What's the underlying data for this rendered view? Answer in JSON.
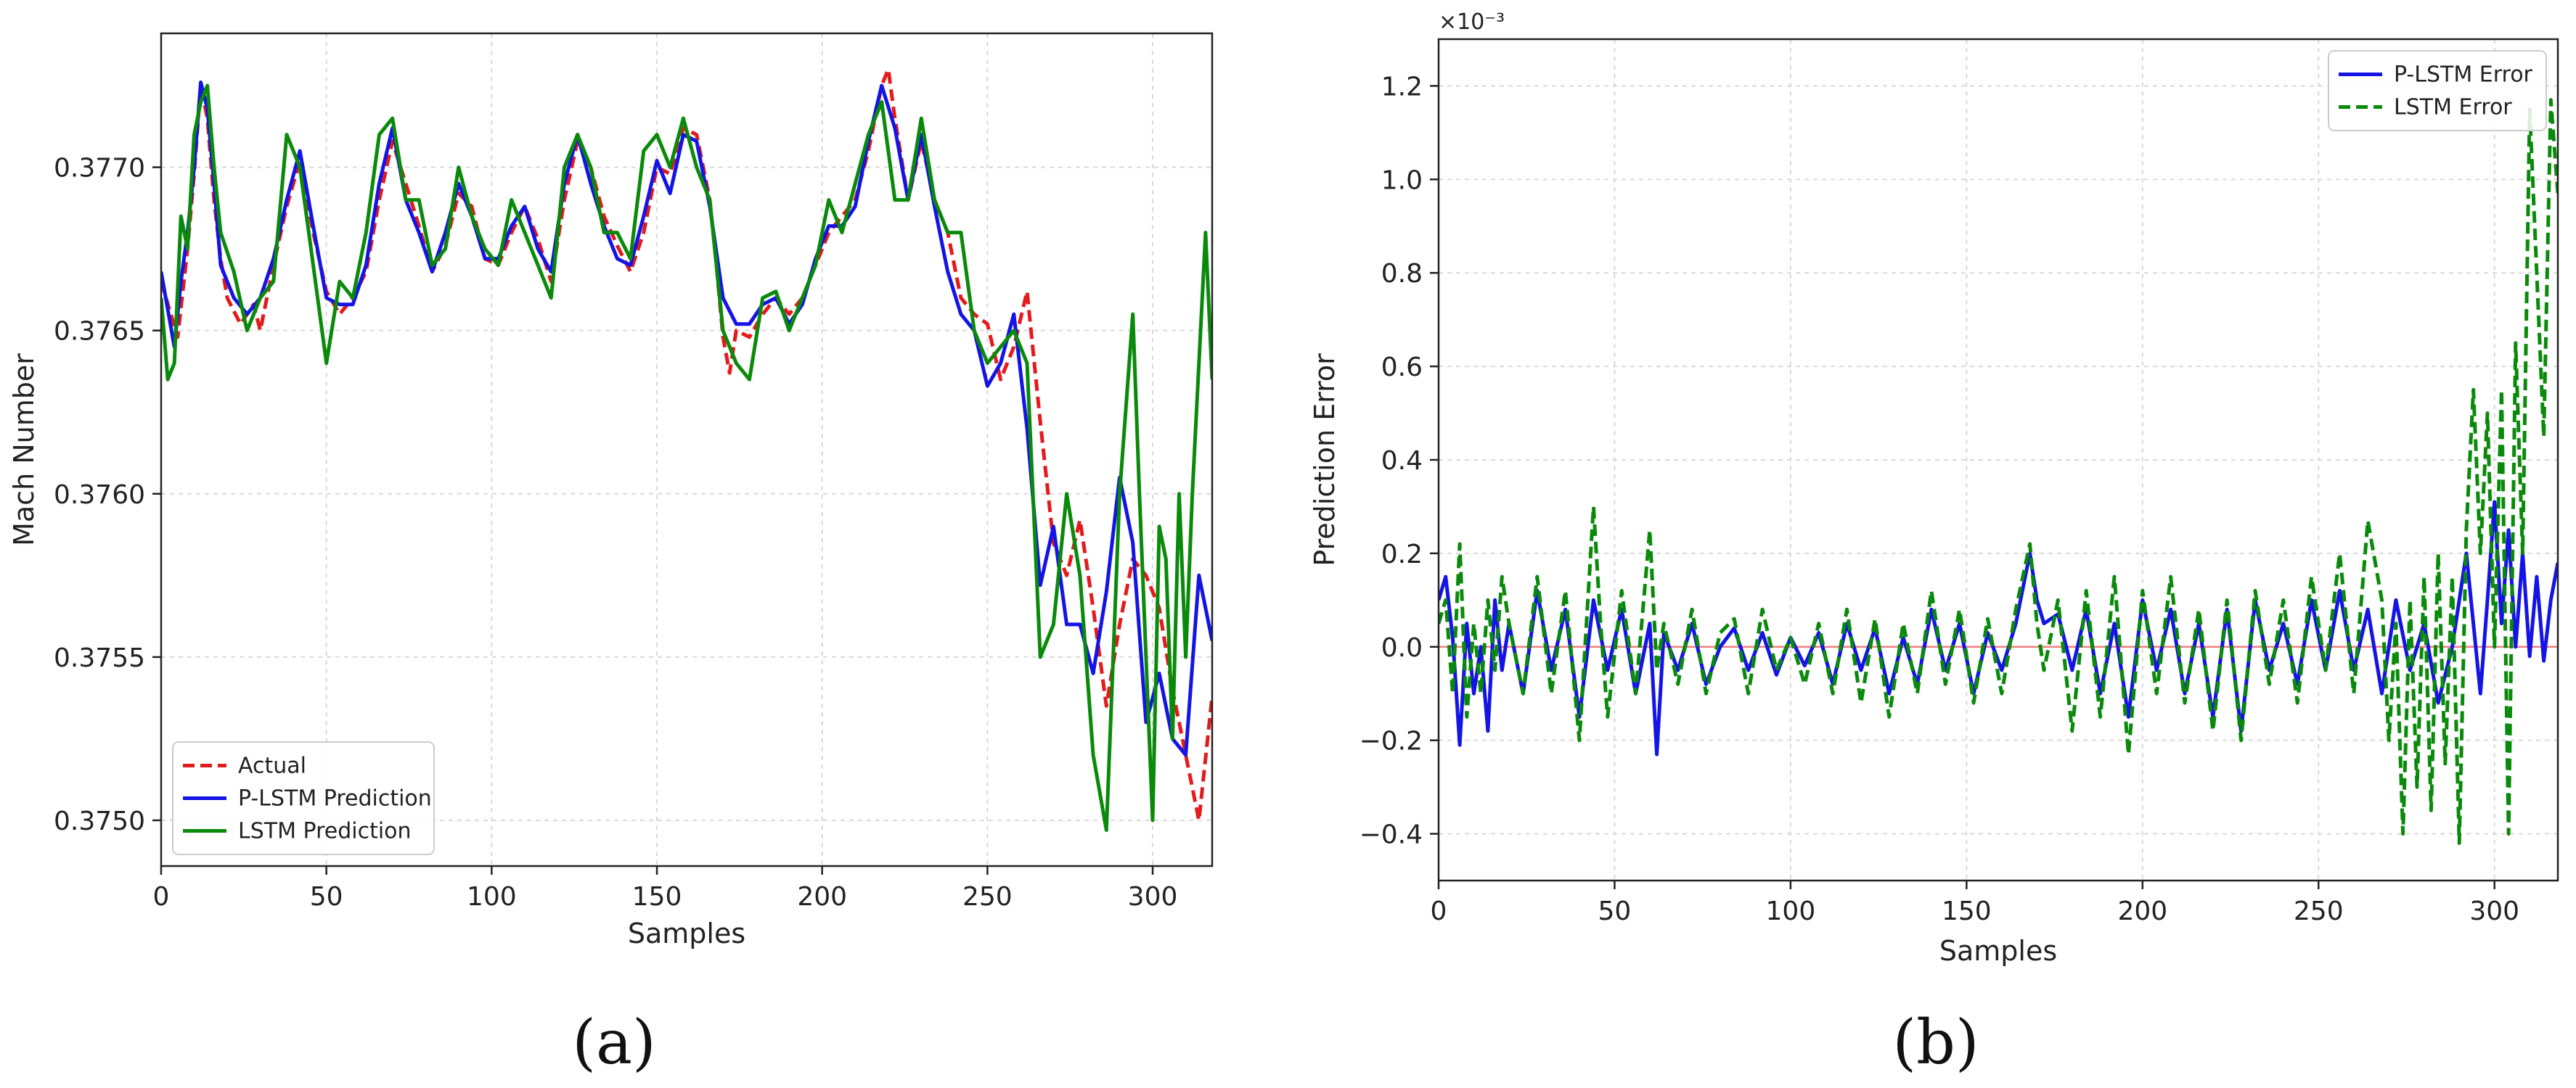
{
  "chart_data": [
    {
      "type": "line",
      "panel_label": "(a)",
      "title": "",
      "xlabel": "Samples",
      "ylabel": "Mach Number",
      "xlim": [
        0,
        318
      ],
      "ylim": [
        0.37486,
        0.37741
      ],
      "xticks": [
        0,
        50,
        100,
        150,
        200,
        250,
        300
      ],
      "xtick_labels": [
        "0",
        "50",
        "100",
        "150",
        "200",
        "250",
        "300"
      ],
      "yticks": [
        0.375,
        0.3755,
        0.376,
        0.3765,
        0.377
      ],
      "ytick_labels": [
        "0.3750",
        "0.3755",
        "0.3760",
        "0.3765",
        "0.3770"
      ],
      "grid": true,
      "legend_position": "lower-left",
      "series": [
        {
          "name": "Actual",
          "color": "#e41a1c",
          "style": "dashed",
          "x": [
            0,
            5,
            8,
            10,
            12,
            14,
            16,
            18,
            20,
            24,
            28,
            30,
            34,
            38,
            42,
            46,
            50,
            54,
            58,
            62,
            66,
            70,
            74,
            78,
            82,
            86,
            90,
            94,
            98,
            102,
            106,
            110,
            114,
            118,
            122,
            126,
            130,
            134,
            138,
            142,
            146,
            150,
            154,
            158,
            162,
            166,
            168,
            170,
            172,
            174,
            178,
            182,
            186,
            190,
            194,
            198,
            202,
            206,
            210,
            214,
            218,
            220,
            222,
            226,
            230,
            234,
            238,
            242,
            246,
            250,
            254,
            258,
            262,
            266,
            270,
            274,
            278,
            282,
            286,
            290,
            294,
            298,
            302,
            306,
            310,
            314,
            318
          ],
          "y": [
            0.37665,
            0.37648,
            0.37675,
            0.37698,
            0.37725,
            0.37715,
            0.3769,
            0.37672,
            0.3766,
            0.37652,
            0.37658,
            0.3765,
            0.3767,
            0.37688,
            0.37702,
            0.3768,
            0.37662,
            0.37655,
            0.3766,
            0.37668,
            0.3769,
            0.37708,
            0.37695,
            0.37682,
            0.37668,
            0.37676,
            0.37692,
            0.37688,
            0.37672,
            0.3767,
            0.3768,
            0.37688,
            0.37678,
            0.37665,
            0.3769,
            0.37708,
            0.377,
            0.37685,
            0.37676,
            0.37668,
            0.3768,
            0.377,
            0.37698,
            0.37712,
            0.3771,
            0.3769,
            0.3767,
            0.37648,
            0.37637,
            0.3765,
            0.37648,
            0.37655,
            0.3766,
            0.37655,
            0.3766,
            0.3767,
            0.3768,
            0.37685,
            0.3769,
            0.37705,
            0.37725,
            0.3773,
            0.37715,
            0.3769,
            0.37708,
            0.3769,
            0.3768,
            0.3766,
            0.37655,
            0.37652,
            0.37635,
            0.37645,
            0.37662,
            0.37622,
            0.37585,
            0.37575,
            0.37592,
            0.37565,
            0.37535,
            0.3756,
            0.3758,
            0.37575,
            0.37565,
            0.3754,
            0.3752,
            0.375,
            0.37538
          ]
        },
        {
          "name": "P-LSTM Prediction",
          "color": "#1414e6",
          "style": "solid",
          "x": [
            0,
            4,
            6,
            8,
            10,
            12,
            14,
            16,
            18,
            22,
            26,
            30,
            34,
            38,
            42,
            46,
            50,
            54,
            58,
            62,
            66,
            70,
            74,
            78,
            82,
            86,
            90,
            94,
            98,
            102,
            106,
            110,
            114,
            118,
            122,
            126,
            130,
            134,
            138,
            142,
            146,
            150,
            154,
            158,
            162,
            166,
            170,
            174,
            178,
            182,
            186,
            190,
            194,
            198,
            202,
            206,
            210,
            214,
            218,
            222,
            226,
            230,
            234,
            238,
            242,
            246,
            250,
            254,
            258,
            262,
            266,
            270,
            274,
            278,
            282,
            286,
            290,
            294,
            298,
            302,
            306,
            310,
            314,
            318
          ],
          "y": [
            0.37668,
            0.37645,
            0.37665,
            0.3768,
            0.377,
            0.37726,
            0.37718,
            0.37695,
            0.3767,
            0.3766,
            0.37655,
            0.3766,
            0.37672,
            0.3769,
            0.37705,
            0.37682,
            0.3766,
            0.37658,
            0.37658,
            0.3767,
            0.37695,
            0.37712,
            0.3769,
            0.3768,
            0.37668,
            0.3768,
            0.37695,
            0.37685,
            0.37672,
            0.37672,
            0.37682,
            0.37688,
            0.37675,
            0.37668,
            0.37695,
            0.3771,
            0.37695,
            0.37682,
            0.37672,
            0.3767,
            0.37685,
            0.37702,
            0.37692,
            0.3771,
            0.37708,
            0.37688,
            0.3766,
            0.37652,
            0.37652,
            0.37658,
            0.3766,
            0.37652,
            0.37658,
            0.37672,
            0.37682,
            0.37682,
            0.37688,
            0.37708,
            0.37725,
            0.37712,
            0.3769,
            0.3771,
            0.37688,
            0.37668,
            0.37655,
            0.3765,
            0.37633,
            0.3764,
            0.37655,
            0.3762,
            0.37572,
            0.3759,
            0.3756,
            0.3756,
            0.37545,
            0.3757,
            0.37605,
            0.37585,
            0.3753,
            0.37545,
            0.37525,
            0.3752,
            0.37575,
            0.37555
          ]
        },
        {
          "name": "LSTM Prediction",
          "color": "#0a8a0a",
          "style": "solid",
          "x": [
            0,
            2,
            4,
            6,
            8,
            10,
            12,
            14,
            16,
            18,
            22,
            26,
            30,
            34,
            38,
            42,
            46,
            50,
            54,
            58,
            62,
            66,
            70,
            74,
            78,
            82,
            86,
            90,
            94,
            98,
            102,
            106,
            110,
            114,
            118,
            122,
            126,
            130,
            134,
            138,
            142,
            146,
            150,
            154,
            158,
            162,
            166,
            170,
            174,
            178,
            182,
            186,
            190,
            194,
            198,
            202,
            206,
            210,
            214,
            218,
            222,
            226,
            230,
            234,
            238,
            242,
            246,
            250,
            254,
            258,
            262,
            266,
            270,
            274,
            278,
            282,
            286,
            290,
            294,
            296,
            300,
            302,
            304,
            306,
            308,
            310,
            312,
            314,
            316,
            318
          ],
          "y": [
            0.3766,
            0.37635,
            0.3764,
            0.37685,
            0.37675,
            0.3771,
            0.3772,
            0.37725,
            0.377,
            0.3768,
            0.37668,
            0.3765,
            0.3766,
            0.37665,
            0.3771,
            0.377,
            0.3767,
            0.3764,
            0.37665,
            0.3766,
            0.3768,
            0.3771,
            0.37715,
            0.3769,
            0.3769,
            0.3767,
            0.37675,
            0.377,
            0.37685,
            0.37675,
            0.3767,
            0.3769,
            0.3768,
            0.3767,
            0.3766,
            0.377,
            0.3771,
            0.377,
            0.3768,
            0.3768,
            0.37672,
            0.37705,
            0.3771,
            0.377,
            0.37715,
            0.377,
            0.3769,
            0.3765,
            0.3764,
            0.37635,
            0.3766,
            0.37662,
            0.3765,
            0.3766,
            0.3767,
            0.3769,
            0.3768,
            0.37695,
            0.3771,
            0.3772,
            0.3769,
            0.3769,
            0.37715,
            0.3769,
            0.3768,
            0.3768,
            0.3765,
            0.3764,
            0.37645,
            0.3765,
            0.3764,
            0.3755,
            0.3756,
            0.376,
            0.37575,
            0.3752,
            0.37497,
            0.376,
            0.37655,
            0.376,
            0.375,
            0.3759,
            0.3758,
            0.37525,
            0.376,
            0.3755,
            0.376,
            0.3764,
            0.3768,
            0.37635
          ]
        }
      ]
    },
    {
      "type": "line",
      "panel_label": "(b)",
      "title": "",
      "xlabel": "Samples",
      "ylabel": "Prediction Error",
      "scale_note": "×10⁻³",
      "xlim": [
        0,
        318
      ],
      "ylim": [
        -0.5,
        1.3
      ],
      "xticks": [
        0,
        50,
        100,
        150,
        200,
        250,
        300
      ],
      "xtick_labels": [
        "0",
        "50",
        "100",
        "150",
        "200",
        "250",
        "300"
      ],
      "yticks": [
        -0.4,
        -0.2,
        0.0,
        0.2,
        0.4,
        0.6,
        0.8,
        1.0,
        1.2
      ],
      "ytick_labels": [
        "−0.4",
        "−0.2",
        "0.0",
        "0.2",
        "0.4",
        "0.6",
        "0.8",
        "1.0",
        "1.2"
      ],
      "reference_line": {
        "y": 0.0,
        "color": "#f08080"
      },
      "grid": true,
      "legend_position": "top-right",
      "series": [
        {
          "name": "P-LSTM Error",
          "color": "#1414e6",
          "style": "solid",
          "x": [
            0,
            2,
            4,
            6,
            8,
            10,
            12,
            14,
            16,
            18,
            20,
            24,
            28,
            32,
            36,
            40,
            44,
            48,
            52,
            56,
            60,
            62,
            64,
            68,
            72,
            76,
            80,
            84,
            88,
            92,
            96,
            100,
            104,
            108,
            112,
            116,
            120,
            124,
            128,
            132,
            136,
            140,
            144,
            148,
            152,
            156,
            160,
            164,
            168,
            170,
            172,
            176,
            180,
            184,
            188,
            192,
            196,
            200,
            204,
            208,
            212,
            216,
            220,
            224,
            228,
            232,
            236,
            240,
            244,
            248,
            252,
            256,
            260,
            264,
            268,
            272,
            276,
            280,
            284,
            288,
            292,
            296,
            298,
            300,
            302,
            304,
            306,
            308,
            310,
            312,
            314,
            316,
            318
          ],
          "y": [
            0.1,
            0.15,
            0.02,
            -0.21,
            0.05,
            -0.1,
            0.0,
            -0.18,
            0.1,
            -0.05,
            0.05,
            -0.1,
            0.12,
            -0.05,
            0.08,
            -0.15,
            0.1,
            -0.05,
            0.08,
            -0.1,
            0.05,
            -0.23,
            0.03,
            -0.05,
            0.05,
            -0.08,
            0.0,
            0.04,
            -0.05,
            0.03,
            -0.06,
            0.02,
            -0.04,
            0.03,
            -0.08,
            0.05,
            -0.05,
            0.04,
            -0.1,
            0.02,
            -0.08,
            0.08,
            -0.05,
            0.05,
            -0.1,
            0.03,
            -0.05,
            0.05,
            0.2,
            0.1,
            0.05,
            0.07,
            -0.05,
            0.08,
            -0.1,
            0.05,
            -0.15,
            0.1,
            -0.05,
            0.08,
            -0.1,
            0.05,
            -0.15,
            0.08,
            -0.18,
            0.1,
            -0.05,
            0.05,
            -0.08,
            0.1,
            -0.05,
            0.12,
            -0.05,
            0.08,
            -0.1,
            0.1,
            -0.05,
            0.05,
            -0.12,
            0.0,
            0.2,
            -0.1,
            0.1,
            0.31,
            0.05,
            0.25,
            0.0,
            0.2,
            -0.02,
            0.15,
            -0.03,
            0.1,
            0.18
          ]
        },
        {
          "name": "LSTM Error",
          "color": "#0a8a0a",
          "style": "dashed",
          "x": [
            0,
            2,
            4,
            6,
            8,
            10,
            12,
            14,
            16,
            18,
            20,
            24,
            28,
            32,
            36,
            40,
            44,
            46,
            48,
            52,
            56,
            60,
            62,
            64,
            68,
            72,
            76,
            80,
            84,
            88,
            92,
            96,
            100,
            104,
            108,
            112,
            116,
            120,
            124,
            128,
            132,
            136,
            140,
            144,
            148,
            152,
            156,
            160,
            164,
            168,
            170,
            172,
            176,
            180,
            184,
            188,
            192,
            196,
            200,
            204,
            208,
            212,
            216,
            220,
            224,
            228,
            232,
            236,
            240,
            244,
            248,
            252,
            256,
            260,
            264,
            268,
            270,
            272,
            274,
            276,
            278,
            280,
            282,
            284,
            286,
            288,
            290,
            292,
            294,
            296,
            298,
            300,
            302,
            304,
            306,
            308,
            310,
            312,
            314,
            316,
            318
          ],
          "y": [
            0.05,
            0.1,
            -0.1,
            0.22,
            -0.15,
            0.05,
            -0.1,
            0.1,
            -0.05,
            0.15,
            0.05,
            -0.1,
            0.15,
            -0.1,
            0.12,
            -0.2,
            0.3,
            0.05,
            -0.15,
            0.12,
            -0.1,
            0.25,
            -0.05,
            0.05,
            -0.08,
            0.08,
            -0.1,
            0.03,
            0.06,
            -0.1,
            0.08,
            -0.05,
            0.02,
            -0.08,
            0.05,
            -0.1,
            0.08,
            -0.12,
            0.06,
            -0.15,
            0.05,
            -0.1,
            0.12,
            -0.08,
            0.08,
            -0.12,
            0.06,
            -0.1,
            0.08,
            0.22,
            0.05,
            -0.05,
            0.1,
            -0.18,
            0.12,
            -0.15,
            0.15,
            -0.23,
            0.12,
            -0.1,
            0.15,
            -0.12,
            0.08,
            -0.18,
            0.1,
            -0.2,
            0.12,
            -0.08,
            0.1,
            -0.12,
            0.15,
            -0.05,
            0.2,
            -0.1,
            0.27,
            0.1,
            -0.2,
            0.05,
            -0.4,
            0.1,
            -0.3,
            0.15,
            -0.35,
            0.2,
            -0.25,
            0.15,
            -0.42,
            0.25,
            0.55,
            0.2,
            0.5,
            0.0,
            0.55,
            -0.4,
            0.65,
            0.2,
            1.15,
            0.8,
            0.45,
            1.17,
            0.97
          ]
        }
      ]
    }
  ]
}
